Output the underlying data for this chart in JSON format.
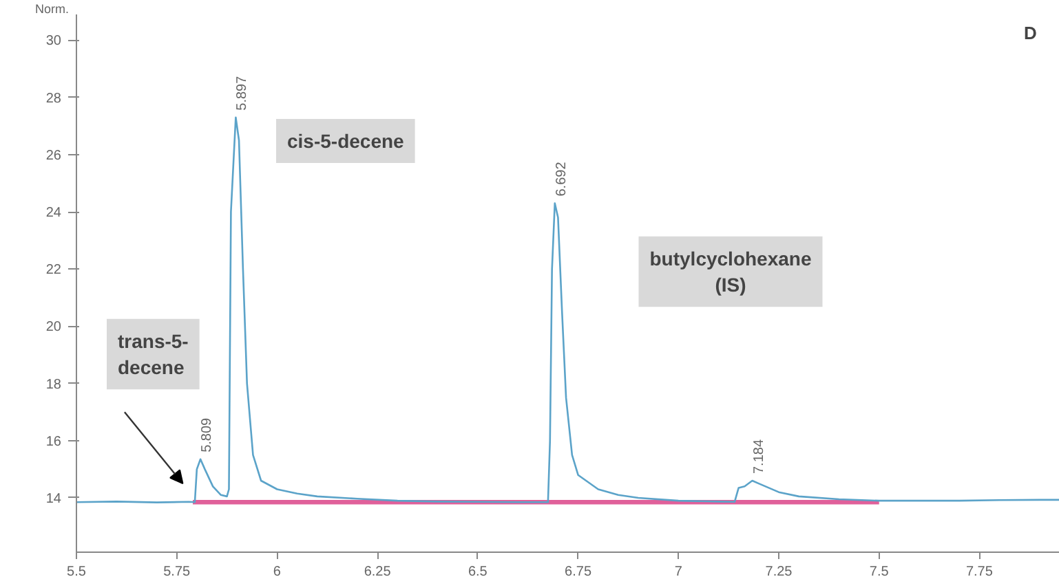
{
  "chart_data": {
    "type": "line",
    "ylabel": "Norm.",
    "xlim": [
      5.5,
      7.95
    ],
    "ylim": [
      12.1,
      30.9
    ],
    "xticks": [
      5.5,
      5.75,
      6,
      6.25,
      6.5,
      6.75,
      7,
      7.25,
      7.5,
      7.75
    ],
    "yticks": [
      14,
      16,
      18,
      20,
      22,
      24,
      26,
      28,
      30
    ],
    "grid": false,
    "marker": "none",
    "line_style": "solid",
    "series": [
      {
        "color": "#5ba3c9",
        "x": [
          5.5,
          5.6,
          5.7,
          5.78,
          5.795,
          5.8,
          5.809,
          5.82,
          5.84,
          5.86,
          5.875,
          5.88,
          5.885,
          5.897,
          5.905,
          5.915,
          5.925,
          5.94,
          5.96,
          6.0,
          6.05,
          6.1,
          6.2,
          6.3,
          6.4,
          6.5,
          6.6,
          6.675,
          6.68,
          6.685,
          6.692,
          6.7,
          6.71,
          6.72,
          6.735,
          6.75,
          6.8,
          6.85,
          6.9,
          7.0,
          7.1,
          7.14,
          7.15,
          7.165,
          7.184,
          7.2,
          7.25,
          7.3,
          7.4,
          7.5,
          7.6,
          7.7,
          7.8,
          7.9,
          7.95
        ],
        "values": [
          13.85,
          13.87,
          13.84,
          13.86,
          13.85,
          15.0,
          15.35,
          15.0,
          14.4,
          14.1,
          14.05,
          14.3,
          24.0,
          27.3,
          26.5,
          22.0,
          18.0,
          15.5,
          14.6,
          14.3,
          14.15,
          14.05,
          13.97,
          13.9,
          13.87,
          13.86,
          13.85,
          13.85,
          16.0,
          22.0,
          24.3,
          23.8,
          20.5,
          17.5,
          15.5,
          14.8,
          14.3,
          14.1,
          14.0,
          13.9,
          13.87,
          13.86,
          14.35,
          14.4,
          14.6,
          14.5,
          14.2,
          14.05,
          13.95,
          13.9,
          13.9,
          13.9,
          13.92,
          13.93,
          13.93
        ]
      },
      {
        "color": "#e0609a",
        "x": [
          5.79,
          7.5
        ],
        "values": [
          13.85,
          13.85
        ]
      }
    ],
    "annotations": [
      {
        "text": "5.809",
        "x": 5.809,
        "y": 15.35
      },
      {
        "text": "5.897",
        "x": 5.897,
        "y": 27.3
      },
      {
        "text": "6.692",
        "x": 6.692,
        "y": 24.3
      },
      {
        "text": "7.184",
        "x": 7.184,
        "y": 14.6
      },
      "cis-5-decene",
      "trans-5-\ndecene",
      "butylcyclohexane\n(IS)",
      "D"
    ]
  }
}
